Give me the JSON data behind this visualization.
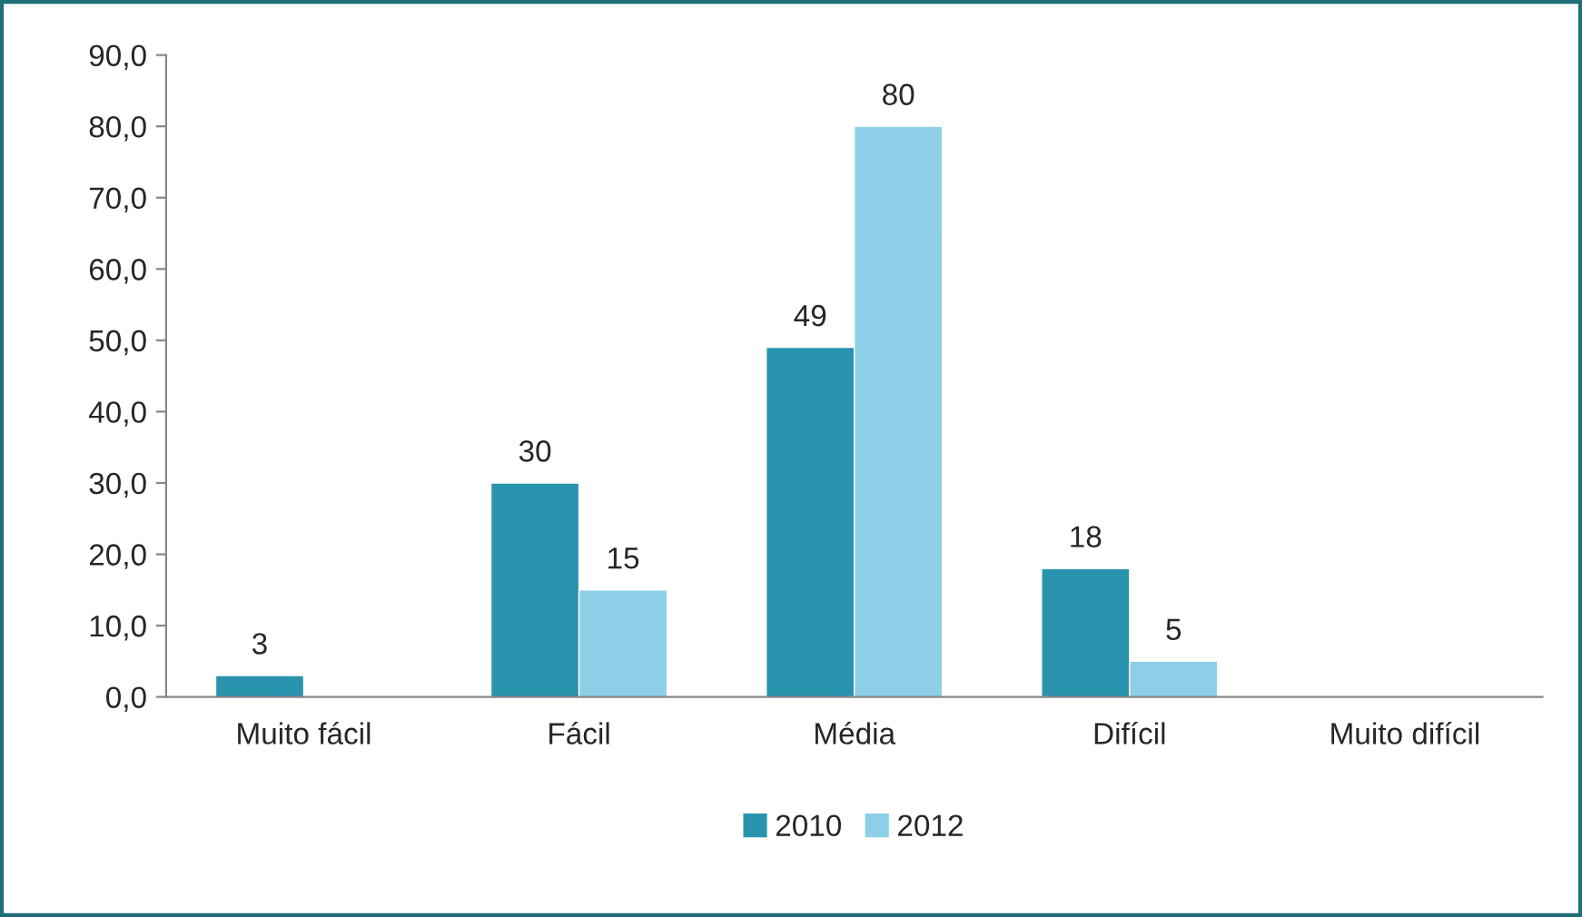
{
  "chart_data": {
    "type": "bar",
    "categories": [
      "Muito fácil",
      "Fácil",
      "Média",
      "Difícil",
      "Muito difícil"
    ],
    "series": [
      {
        "name": "2010",
        "color": "#2a93ad",
        "values": [
          3,
          30,
          49,
          18,
          null
        ]
      },
      {
        "name": "2012",
        "color": "#8ccfe6",
        "values": [
          null,
          15,
          80,
          5,
          null
        ]
      }
    ],
    "ylim": [
      0,
      90
    ],
    "yticks": [
      {
        "value": 0,
        "label": "0,0"
      },
      {
        "value": 10,
        "label": "10,0"
      },
      {
        "value": 20,
        "label": "20,0"
      },
      {
        "value": 30,
        "label": "30,0"
      },
      {
        "value": 40,
        "label": "40,0"
      },
      {
        "value": 50,
        "label": "50,0"
      },
      {
        "value": 60,
        "label": "60,0"
      },
      {
        "value": 70,
        "label": "70,0"
      },
      {
        "value": 80,
        "label": "80,0"
      },
      {
        "value": 90,
        "label": "90,0"
      }
    ],
    "data_labels": true,
    "grid": false,
    "legend": "bottom"
  }
}
